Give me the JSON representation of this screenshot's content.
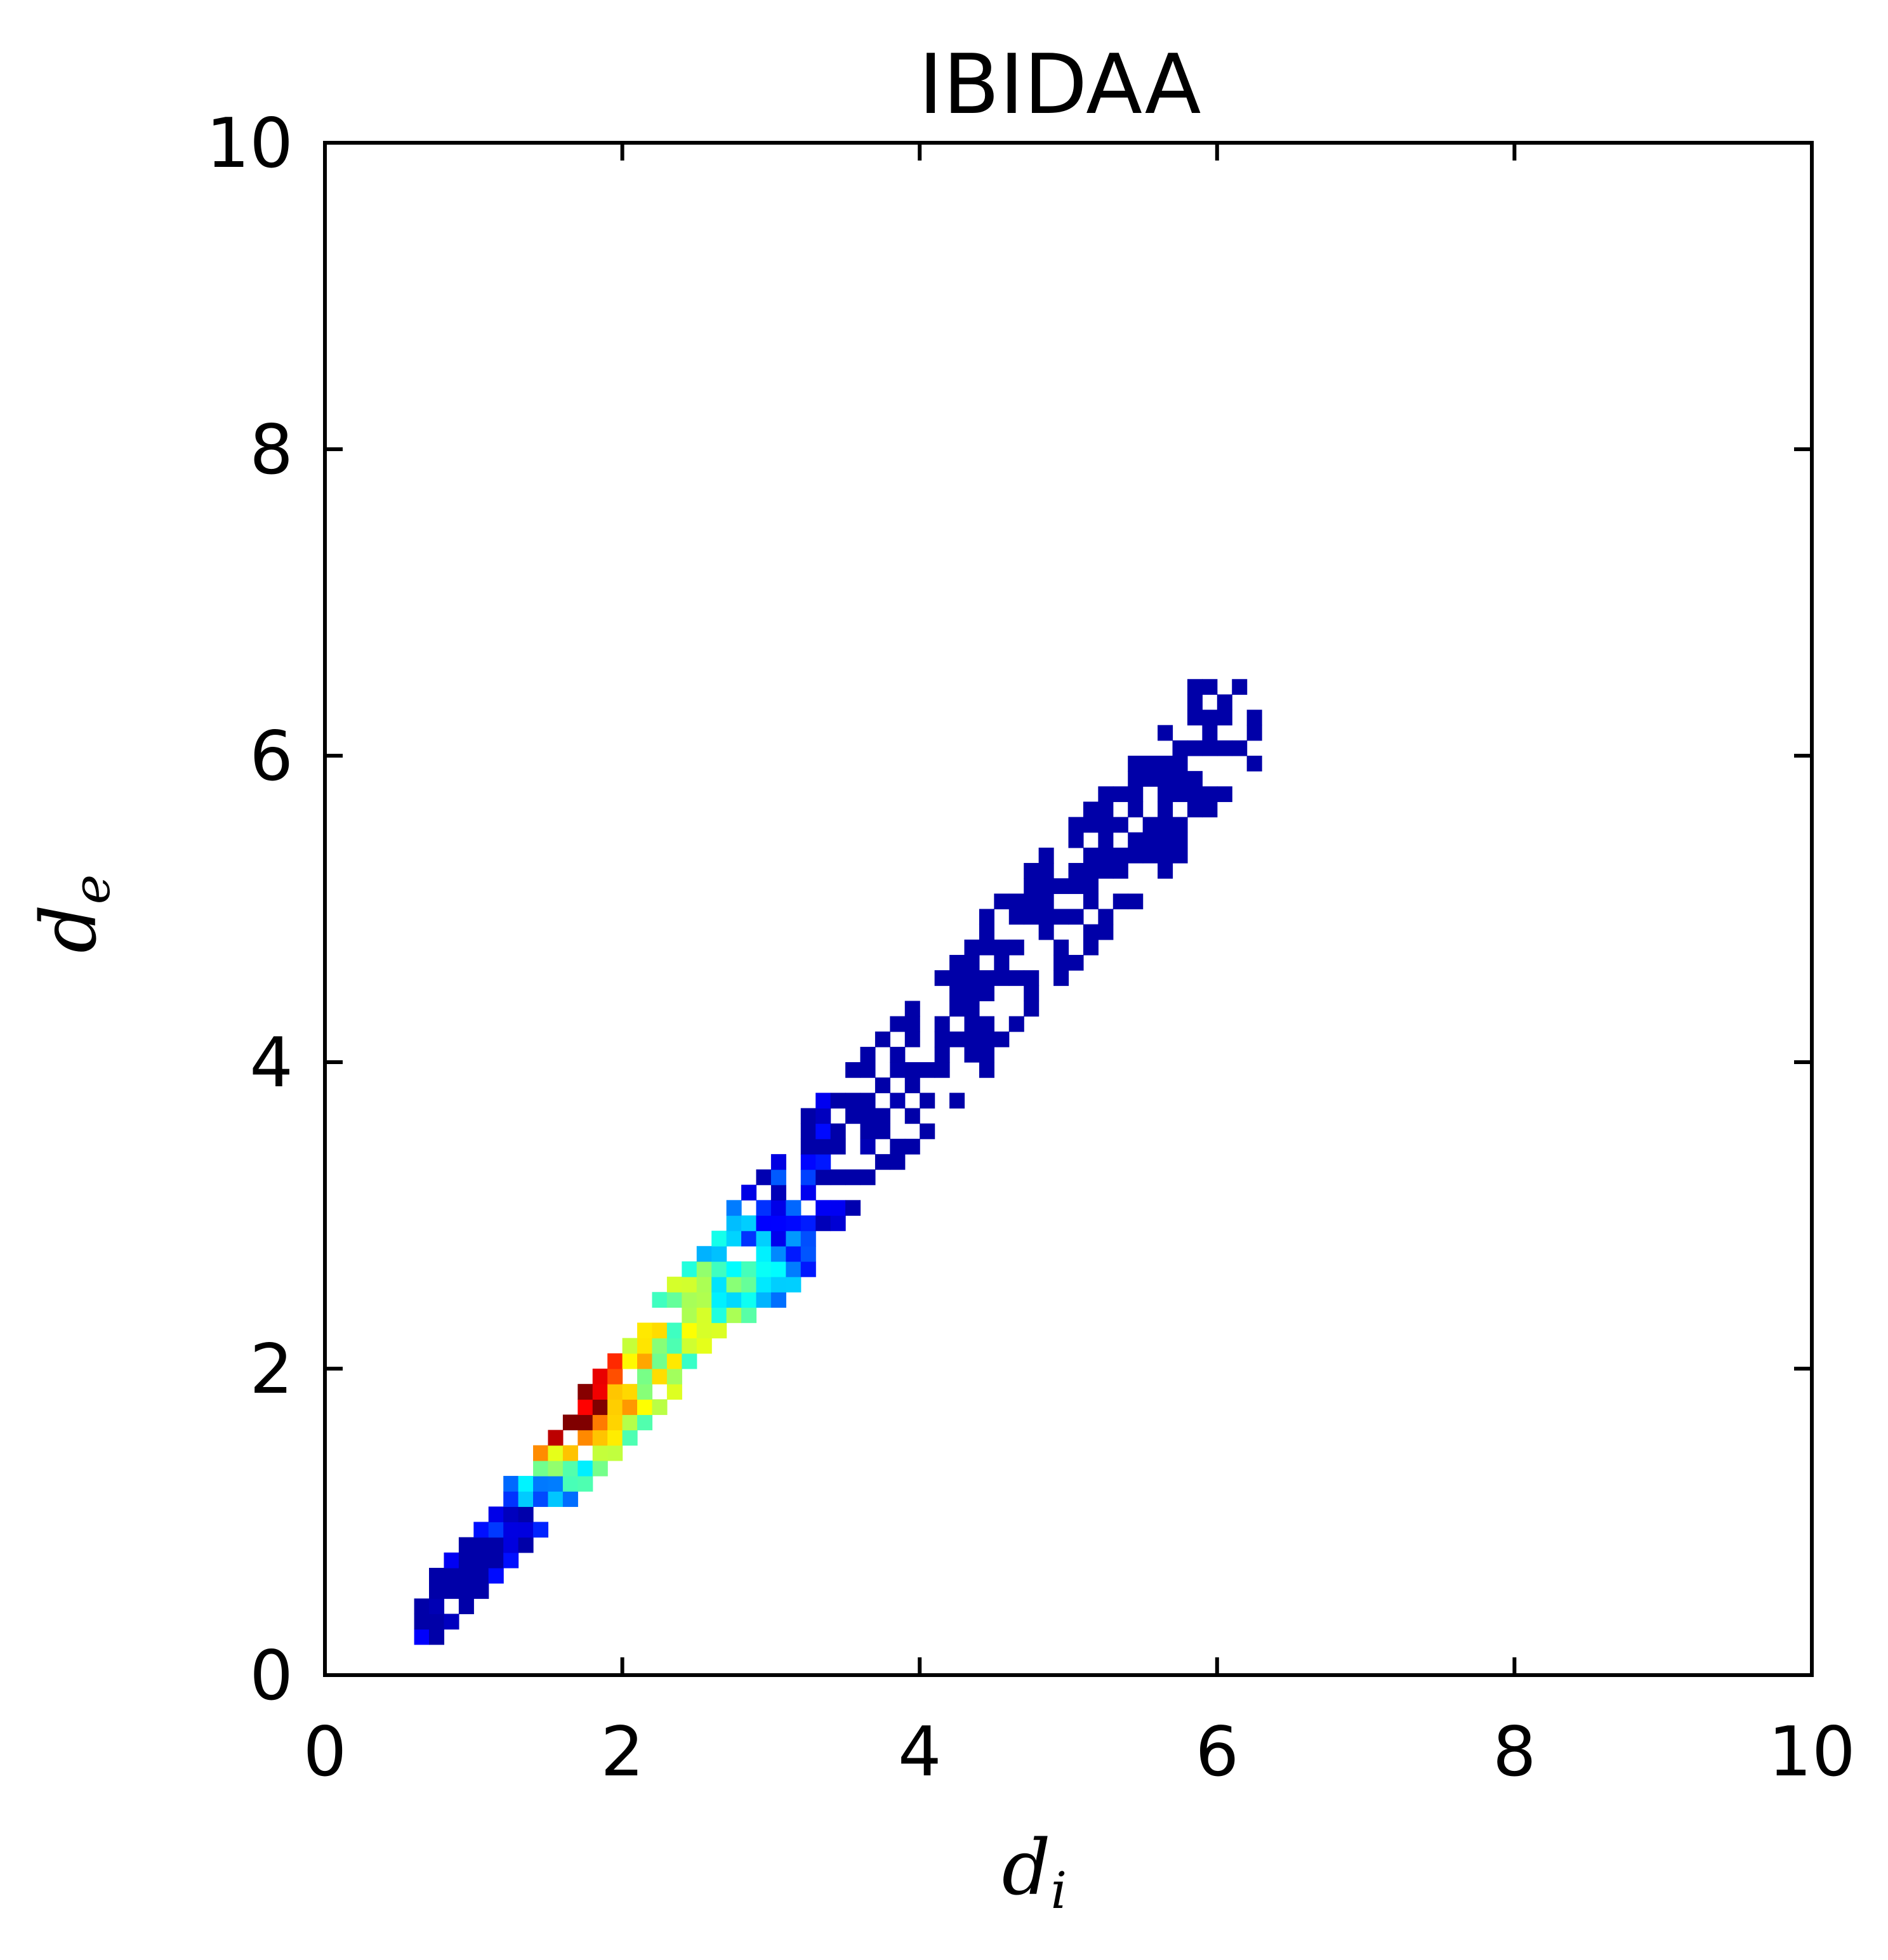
{
  "chart_data": {
    "type": "heatmap",
    "title": "IBIDAA",
    "xlabel": {
      "base": "d",
      "sub": "i"
    },
    "ylabel": {
      "base": "d",
      "sub": "e"
    },
    "xlim": [
      0,
      10
    ],
    "ylim": [
      0,
      10
    ],
    "xticks": [
      "0",
      "2",
      "4",
      "6",
      "8",
      "10"
    ],
    "yticks": [
      "0",
      "2",
      "4",
      "6",
      "8",
      "10"
    ],
    "grid": false,
    "colormap": "jet",
    "bin_size": 0.1,
    "density_regions": [
      {
        "x": [
          0.6,
          2.2
        ],
        "y": [
          0.3,
          2.4
        ],
        "level": "high"
      },
      {
        "x": [
          1.5,
          3.4
        ],
        "y": [
          1.2,
          3.4
        ],
        "level": "medium"
      },
      {
        "x": [
          2.2,
          4.8
        ],
        "y": [
          2.0,
          4.6
        ],
        "level": "low"
      },
      {
        "x": [
          3.6,
          6.3
        ],
        "y": [
          3.8,
          6.4
        ],
        "level": "very-low"
      }
    ]
  }
}
